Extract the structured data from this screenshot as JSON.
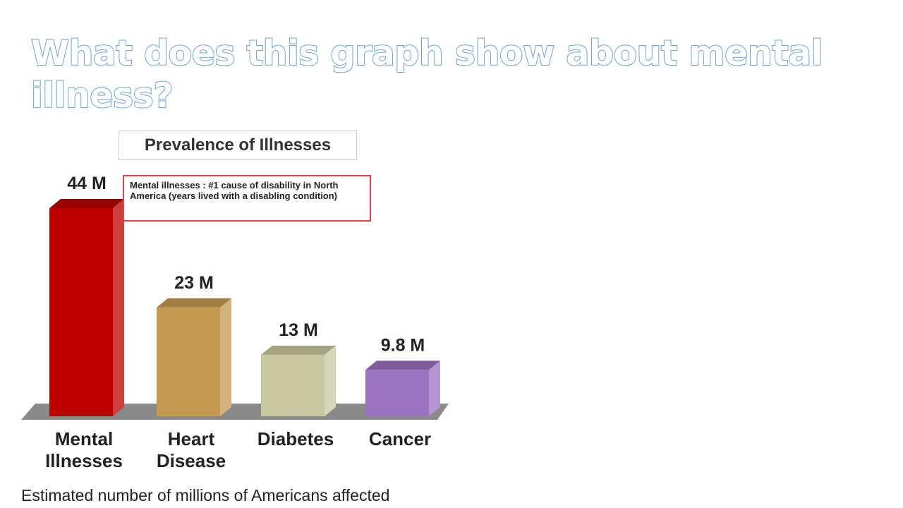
{
  "slide": {
    "title": "What does this graph show about mental illness?"
  },
  "chart_data": {
    "type": "bar",
    "title": "Prevalence of Illnesses",
    "annotation": "Mental illnesses : #1 cause of disability in North America (years lived with a disabling condition)",
    "xlabel": "Estimated number of millions of Americans affected",
    "ylabel": "",
    "unit": "millions",
    "categories": [
      [
        "Mental",
        "Illnesses"
      ],
      [
        "Heart",
        "Disease"
      ],
      [
        "Diabetes"
      ],
      [
        "Cancer"
      ]
    ],
    "values": [
      44,
      23,
      13,
      9.8
    ],
    "value_labels": [
      "44 M",
      "23 M",
      "13 M",
      "9.8 M"
    ],
    "colors": [
      "#bd0000",
      "#c49a50",
      "#c8c8a0",
      "#9b72c0"
    ],
    "grid": false,
    "legend": "none"
  }
}
